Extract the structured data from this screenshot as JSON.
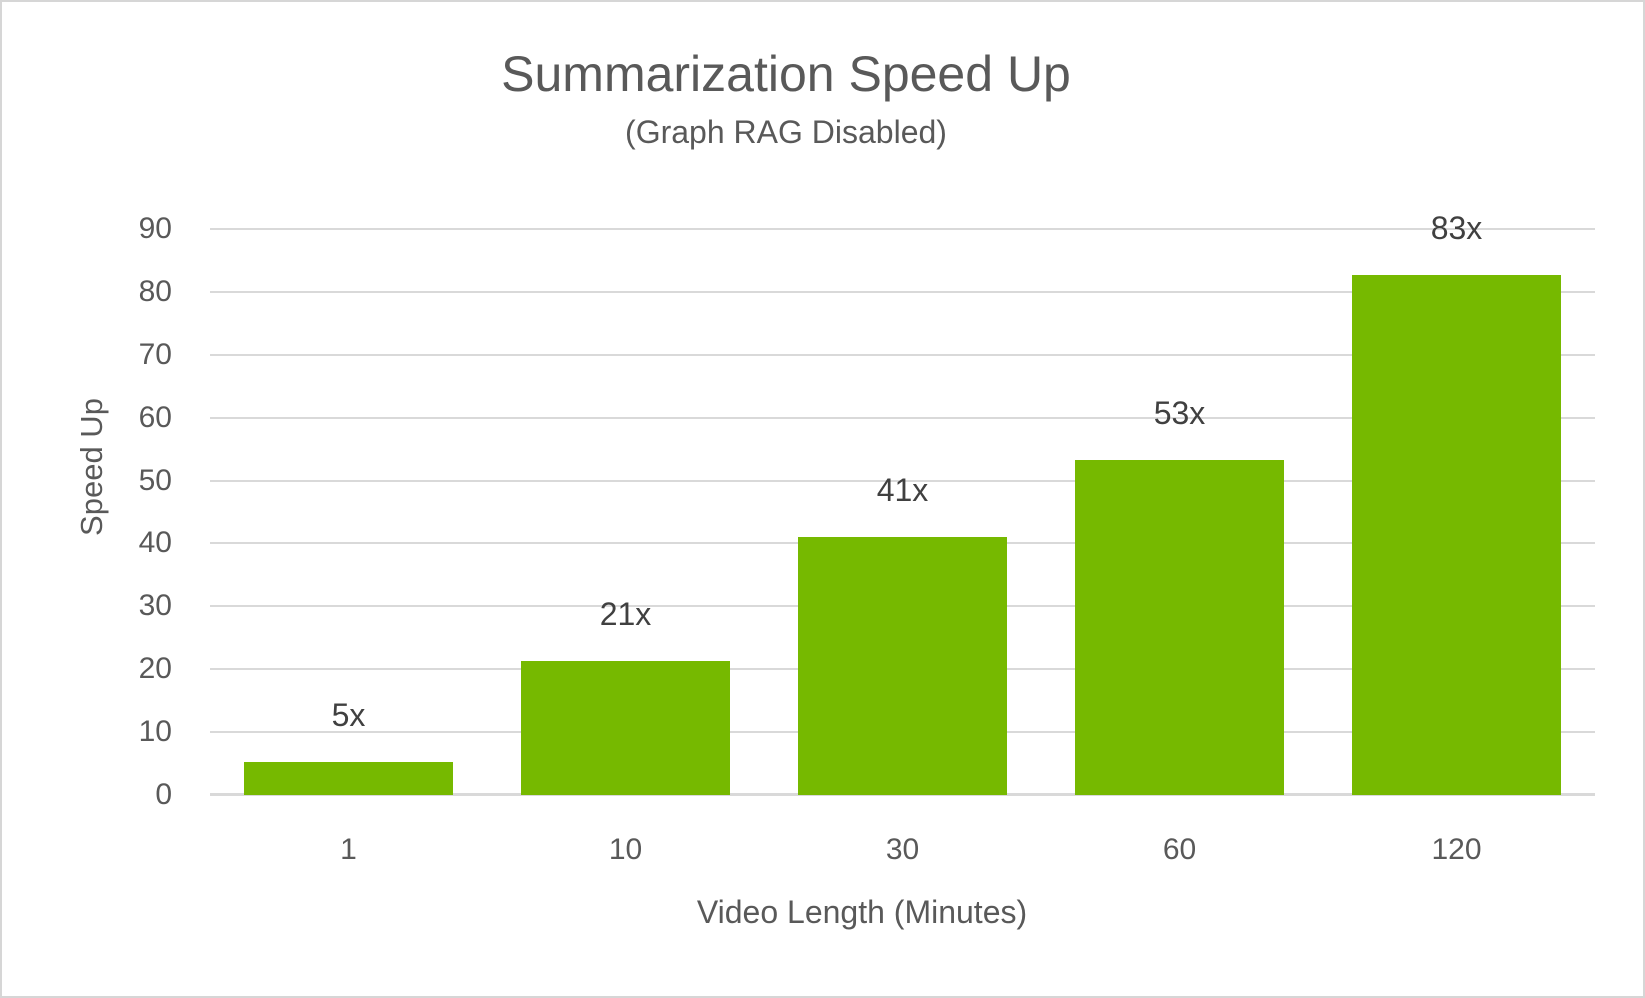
{
  "chart_data": {
    "type": "bar",
    "title": "Summarization Speed Up",
    "subtitle": "(Graph RAG Disabled)",
    "xlabel": "Video Length (Minutes)",
    "ylabel": "Speed Up",
    "categories": [
      "1",
      "10",
      "30",
      "60",
      "120"
    ],
    "values": [
      5.3,
      21.3,
      41,
      53.3,
      82.7
    ],
    "bar_labels": [
      "5x",
      "21x",
      "41x",
      "53x",
      "83x"
    ],
    "ylim": [
      0,
      90
    ],
    "yticks": [
      0,
      10,
      20,
      30,
      40,
      50,
      60,
      70,
      80,
      90
    ],
    "grid": "horizontal-gridlines-on",
    "legend": "none",
    "colors": {
      "bar": "#76B900",
      "gridline": "#D9D9D9",
      "title_text": "#595959",
      "axis_text": "#595959",
      "bar_label_text": "#404040",
      "background": "#FFFFFF",
      "frame_border": "#D6D6D6"
    }
  }
}
